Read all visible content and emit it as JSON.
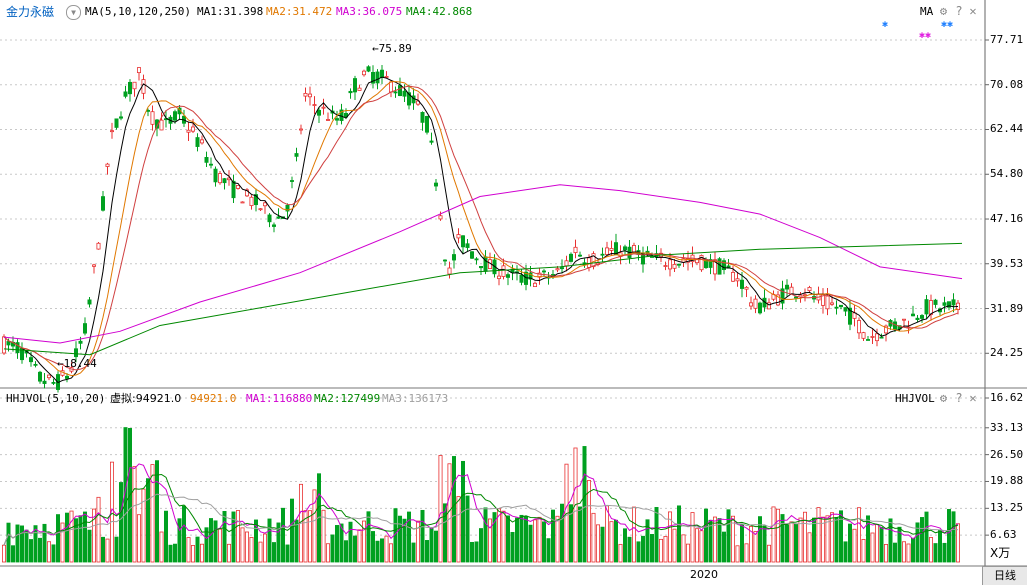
{
  "stock_name": "金力永磁",
  "main_panel": {
    "indicator": "MA(5,10,120,250)",
    "ma_values": [
      {
        "label": "MA1:31.398",
        "color": "#000000"
      },
      {
        "label": "MA2:31.472",
        "color": "#e07800"
      },
      {
        "label": "MA3:36.075",
        "color": "#d000d0"
      },
      {
        "label": "MA4:42.868",
        "color": "#008800"
      }
    ],
    "right_tag": "MA",
    "high_label": "75.89",
    "low_label": "18.44",
    "y_ticks": [
      "77.71",
      "70.08",
      "62.44",
      "54.80",
      "47.16",
      "39.53",
      "31.89",
      "24.25",
      "16.62"
    ]
  },
  "volume_panel": {
    "indicator": "HHJVOL(5,10,20)",
    "virtual_label": "虚拟:94921.0",
    "value_label": "94921.0",
    "ma_values": [
      {
        "label": "MA1:116880",
        "color": "#d000d0"
      },
      {
        "label": "MA2:127499",
        "color": "#008800"
      },
      {
        "label": "MA3:136173",
        "color": "#a0a0a0"
      }
    ],
    "right_tag": "HHJVOL",
    "y_ticks": [
      "33.13",
      "26.50",
      "19.88",
      "13.25",
      "6.63"
    ],
    "unit": "X万"
  },
  "x_axis": {
    "label": "2020"
  },
  "bottom_tab": "日线",
  "colors": {
    "up": "#e83030",
    "down": "#00a020",
    "ma5": "#000000",
    "ma10": "#e07800",
    "ma120": "#d000d0",
    "ma250": "#008800"
  },
  "chart_data": {
    "type": "candlestick",
    "x": [],
    "price_range": [
      16.62,
      77.71
    ],
    "high": 75.89,
    "low": 18.44,
    "volume_range": [
      0,
      33.13
    ],
    "grid": true
  }
}
